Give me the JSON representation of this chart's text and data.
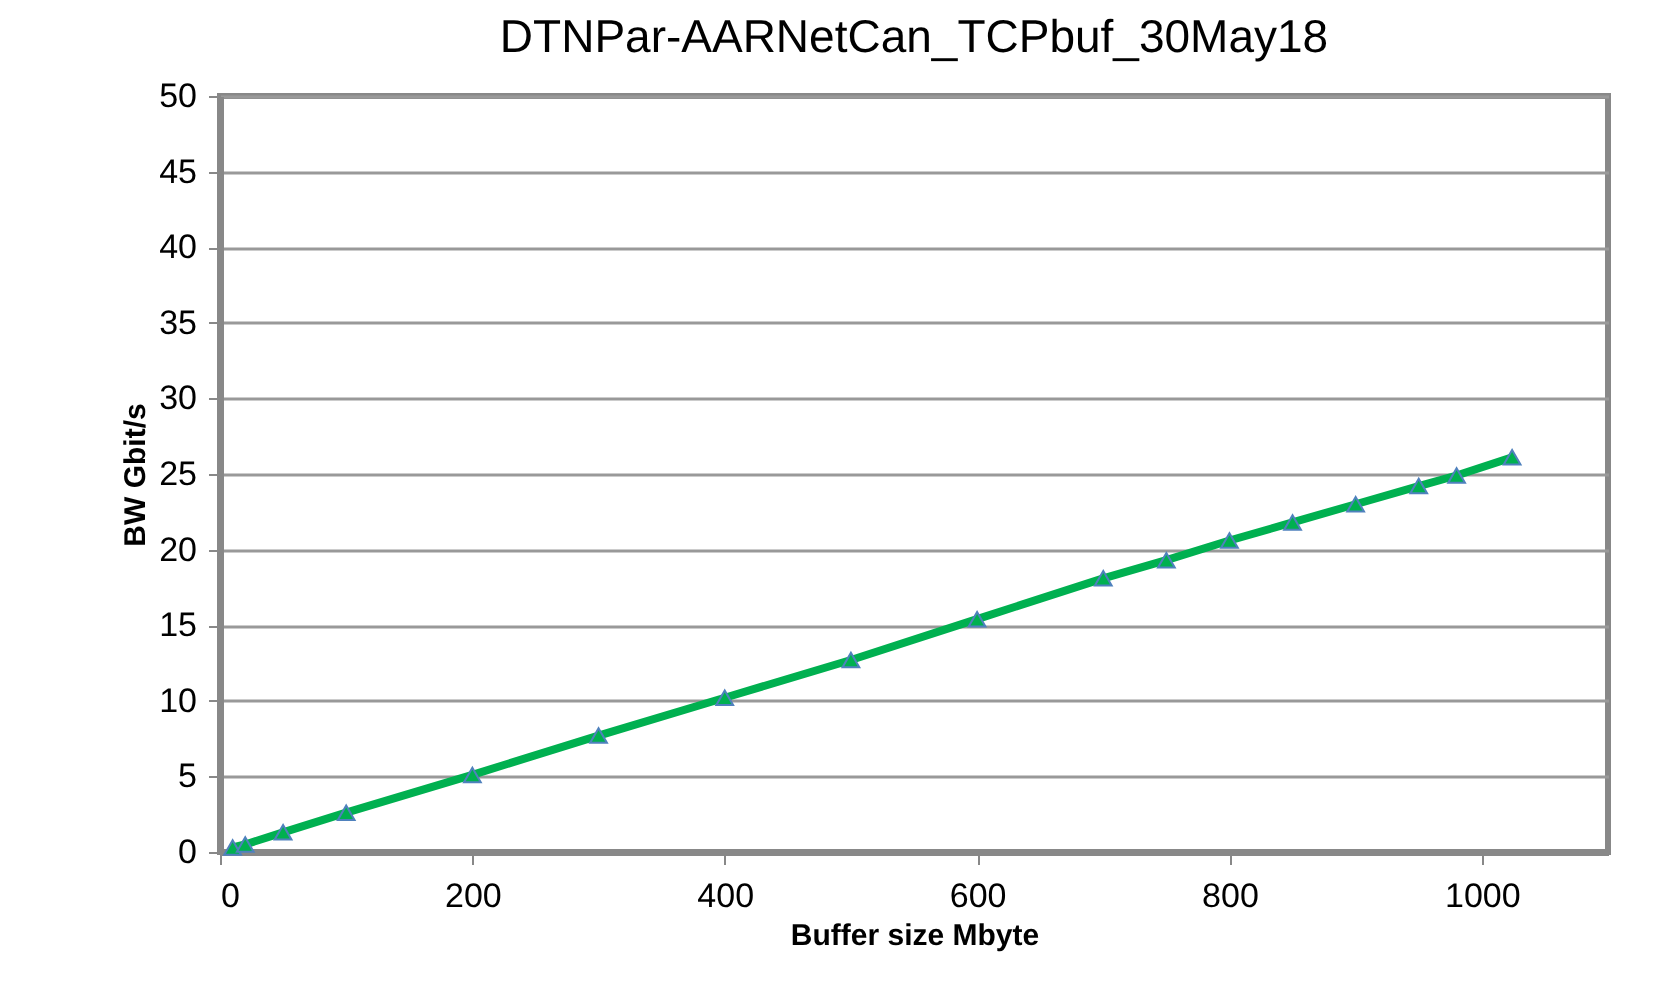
{
  "chart_data": {
    "type": "line",
    "title": "DTNPar-AARNetCan_TCPbuf_30May18",
    "xlabel": "Buffer size Mbyte",
    "ylabel": "BW Gbit/s",
    "x": [
      10,
      20,
      50,
      100,
      200,
      300,
      400,
      500,
      600,
      700,
      750,
      800,
      850,
      900,
      950,
      980,
      1024
    ],
    "series": [
      {
        "color": "#00b050",
        "values": [
          0.3,
          0.5,
          1.3,
          2.6,
          5.1,
          7.7,
          10.2,
          12.7,
          15.4,
          18.1,
          19.3,
          20.6,
          21.8,
          23.0,
          24.2,
          24.9,
          26.1
        ]
      }
    ],
    "xlim": [
      0,
      1100
    ],
    "xticks": [
      0,
      200,
      400,
      600,
      800,
      1000
    ],
    "ylim": [
      0,
      50
    ],
    "yticks": [
      0,
      5,
      10,
      15,
      20,
      25,
      30,
      35,
      40,
      45,
      50
    ],
    "grid": "y",
    "marker": "triangle",
    "line_style": "solid"
  }
}
